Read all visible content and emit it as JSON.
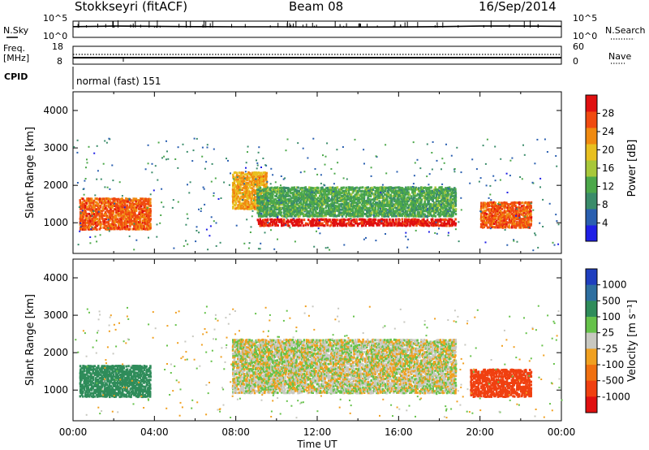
{
  "header": {
    "station": "Stokkseyri (fitACF)",
    "beam": "Beam 08",
    "date": "16/Sep/2014"
  },
  "top_panels": {
    "nsky_label": "N.Sky",
    "nsearch_label": "N.Search",
    "noise_ticks": [
      "10^5",
      "10^0"
    ],
    "freq_label_1": "Freq.",
    "freq_label_2": "[MHz]",
    "freq_ticks": [
      "18",
      "8"
    ],
    "nave_label": "Nave",
    "nave_ticks": [
      "60",
      "0"
    ],
    "cpid_label": "CPID",
    "cpid_value": "normal (fast) 151"
  },
  "colors": {
    "power": [
      "#1f1fe6",
      "#2a5fb0",
      "#3a8c6a",
      "#4ca84a",
      "#a8c83a",
      "#e8c020",
      "#f08a10",
      "#f04a10",
      "#e01010"
    ],
    "velocity": [
      "#1f3fbf",
      "#2e6fa0",
      "#2f8c5a",
      "#66c24a",
      "#c8c8c0",
      "#c8c8c0",
      "#f0a020",
      "#f07010",
      "#f04010",
      "#e01010"
    ]
  },
  "chart_data": [
    {
      "type": "line",
      "title": "N.Sky / N.Search",
      "x_range": [
        "00:00",
        "24:00"
      ],
      "y_scale": "log",
      "y_ticks": [
        "10^0",
        "10^5"
      ],
      "series": [
        {
          "name": "N.Sky",
          "style": "solid",
          "x": [
            0,
            2,
            4,
            6,
            8,
            10,
            12,
            14,
            16,
            18,
            20,
            22,
            24
          ],
          "y": [
            2000,
            3000,
            2500,
            2000,
            1800,
            1800,
            1500,
            1500,
            1600,
            2000,
            3000,
            3000,
            2500
          ]
        },
        {
          "name": "N.Search",
          "style": "dotted",
          "x": [
            0,
            24
          ],
          "y": [
            null,
            null
          ]
        }
      ]
    },
    {
      "type": "line",
      "title": "Freq. / Nave",
      "x_range": [
        "00:00",
        "24:00"
      ],
      "left_axis": {
        "label": "Freq. [MHz]",
        "ticks": [
          "8",
          "18"
        ]
      },
      "right_axis": {
        "label": "Nave",
        "ticks": [
          "0",
          "60"
        ]
      },
      "series": [
        {
          "name": "Freq.",
          "style": "solid",
          "x": [
            0,
            24
          ],
          "y": [
            12,
            12
          ]
        },
        {
          "name": "Nave",
          "style": "dotted",
          "x": [
            0,
            24
          ],
          "y": [
            25,
            25
          ]
        }
      ]
    },
    {
      "type": "heatmap",
      "title": "Power",
      "xlabel": "",
      "ylabel": "Slant Range [km]",
      "xlim": [
        0,
        24
      ],
      "ylim": [
        180,
        4500
      ],
      "y_ticks": [
        1000,
        2000,
        3000,
        4000
      ],
      "colorbar": {
        "label": "Power [dB]",
        "range": [
          0,
          32
        ],
        "tick_labels": [
          "4",
          "8",
          "12",
          "16",
          "20",
          "24",
          "28"
        ]
      },
      "features": [
        {
          "t": [
            0.3,
            3.8
          ],
          "range_km": [
            850,
            1700
          ],
          "value_db": 26
        },
        {
          "t": [
            7.8,
            9.5
          ],
          "range_km": [
            1400,
            2400
          ],
          "value_db": 22
        },
        {
          "t": [
            9.0,
            18.8
          ],
          "range_km": [
            950,
            1150
          ],
          "value_db": 30
        },
        {
          "t": [
            9.0,
            18.8
          ],
          "range_km": [
            1200,
            2000
          ],
          "value_db": 12
        },
        {
          "t": [
            20.0,
            22.5
          ],
          "range_km": [
            900,
            1600
          ],
          "value_db": 26
        }
      ]
    },
    {
      "type": "heatmap",
      "title": "Velocity",
      "xlabel": "Time UT",
      "ylabel": "Slant Range [km]",
      "xlim": [
        0,
        24
      ],
      "ylim": [
        180,
        4500
      ],
      "x_tick_labels": [
        "00:00",
        "04:00",
        "08:00",
        "12:00",
        "16:00",
        "20:00",
        "00:00"
      ],
      "y_ticks": [
        1000,
        2000,
        3000,
        4000
      ],
      "colorbar": {
        "label": "Velocity [m s⁻¹]",
        "tick_labels": [
          "1000",
          "500",
          "100",
          "25",
          "-25",
          "-100",
          "-500",
          "-1000"
        ]
      },
      "features": [
        {
          "t": [
            0.3,
            3.8
          ],
          "range_km": [
            850,
            1700
          ],
          "value_ms": 400
        },
        {
          "t": [
            7.8,
            18.8
          ],
          "range_km": [
            950,
            2400
          ],
          "value_ms": 0
        },
        {
          "t": [
            19.5,
            22.5
          ],
          "range_km": [
            850,
            1600
          ],
          "value_ms": -800
        }
      ]
    }
  ]
}
